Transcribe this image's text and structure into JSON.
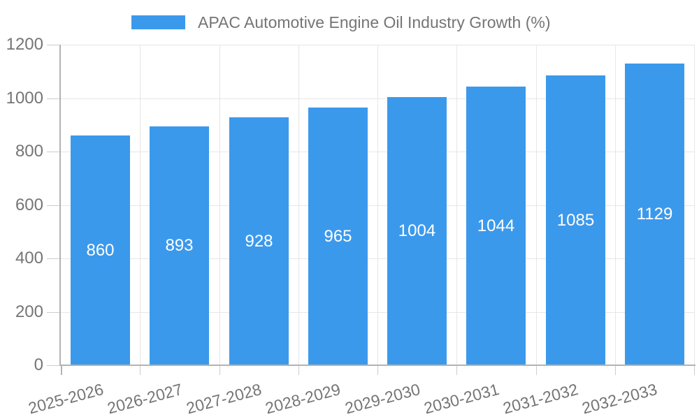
{
  "colors": {
    "bar_color": "#3b99ec",
    "grid_color": "#e6e6e6",
    "axis_color": "#b3b3b3",
    "tick_color": "#cccccc",
    "text_color": "#757575",
    "value_label_color": "#ffffff",
    "background": "#ffffff"
  },
  "legend": {
    "label": "APAC Automotive Engine Oil Industry Growth (%)",
    "position": "top"
  },
  "chart_data": {
    "type": "bar",
    "title": "APAC Automotive Engine Oil Industry Growth (%)",
    "categories": [
      "2025-2026",
      "2026-2027",
      "2027-2028",
      "2028-2029",
      "2029-2030",
      "2030-2031",
      "2031-2032",
      "2032-2033"
    ],
    "values": [
      860,
      893,
      928,
      965,
      1004,
      1044,
      1085,
      1129
    ],
    "value_labels": "inside-center",
    "xlabel": "",
    "ylabel": "",
    "ylim": [
      0,
      1200
    ],
    "yticks": [
      0,
      200,
      400,
      600,
      800,
      1000,
      1200
    ],
    "grid": true,
    "legend_position": "top",
    "x_tick_rotation_deg": -15
  }
}
